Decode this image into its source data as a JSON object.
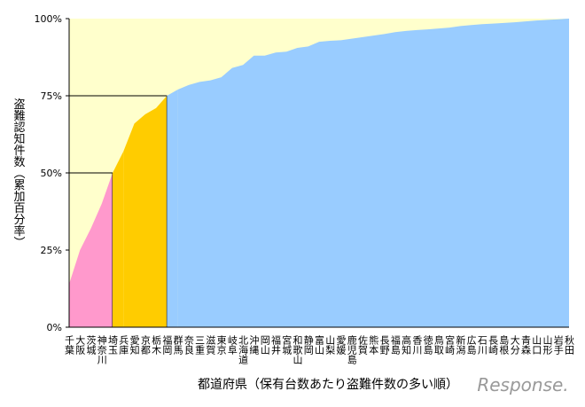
{
  "chart_data": {
    "type": "area",
    "y_label": "盗難認知件数（累加百分率）",
    "x_label": "都道府県（保有台数あたり盗難件数の多い順）",
    "watermark": "Response.",
    "categories": [
      "千葉",
      "大阪",
      "茨城",
      "神奈川",
      "埼玉",
      "兵庫",
      "愛知",
      "京都",
      "栃木",
      "福岡",
      "群馬",
      "奈良",
      "三重",
      "滋賀",
      "東京",
      "岐阜",
      "北海道",
      "沖縄",
      "岡山",
      "福井",
      "宮城",
      "和歌山",
      "静岡",
      "富山",
      "山梨",
      "愛媛",
      "鹿児島",
      "佐賀",
      "熊本",
      "長野",
      "福島",
      "高知",
      "香川",
      "徳島",
      "鳥取",
      "宮崎",
      "新潟",
      "広島",
      "石川",
      "長崎",
      "島根",
      "大分",
      "青森",
      "山口",
      "山形",
      "岩手",
      "秋田"
    ],
    "series": [
      {
        "color": "#ff99cc",
        "values": [
          14,
          25,
          32,
          40,
          50,
          null,
          null,
          null,
          null,
          null,
          null,
          null,
          null,
          null,
          null,
          null,
          null,
          null,
          null,
          null,
          null,
          null,
          null,
          null,
          null,
          null,
          null,
          null,
          null,
          null,
          null,
          null,
          null,
          null,
          null,
          null,
          null,
          null,
          null,
          null,
          null,
          null,
          null,
          null,
          null,
          null,
          null
        ]
      },
      {
        "color": "#ffcc00",
        "values": [
          null,
          null,
          null,
          null,
          null,
          57,
          66,
          69,
          71,
          75,
          null,
          null,
          null,
          null,
          null,
          null,
          null,
          null,
          null,
          null,
          null,
          null,
          null,
          null,
          null,
          null,
          null,
          null,
          null,
          null,
          null,
          null,
          null,
          null,
          null,
          null,
          null,
          null,
          null,
          null,
          null,
          null,
          null,
          null,
          null,
          null,
          null
        ]
      },
      {
        "color": "#99ccff",
        "values": [
          null,
          null,
          null,
          null,
          null,
          null,
          null,
          null,
          null,
          null,
          77,
          78.5,
          79.5,
          80,
          81,
          84,
          85,
          88,
          88,
          89,
          89.3,
          90.5,
          91,
          92.5,
          92.8,
          93,
          93.5,
          94,
          94.5,
          95,
          95.6,
          96,
          96.3,
          96.5,
          96.8,
          97.1,
          97.6,
          97.9,
          98.2,
          98.4,
          98.6,
          98.8,
          99.1,
          99.4,
          99.6,
          99.8,
          100
        ]
      }
    ],
    "background": "#ffffcc",
    "ylim": [
      0,
      100
    ],
    "yticks": [
      {
        "value": 0,
        "label": "0%"
      },
      {
        "value": 25,
        "label": "25%"
      },
      {
        "value": 50,
        "label": "50%"
      },
      {
        "value": 75,
        "label": "75%"
      },
      {
        "value": 100,
        "label": "100%"
      }
    ]
  }
}
